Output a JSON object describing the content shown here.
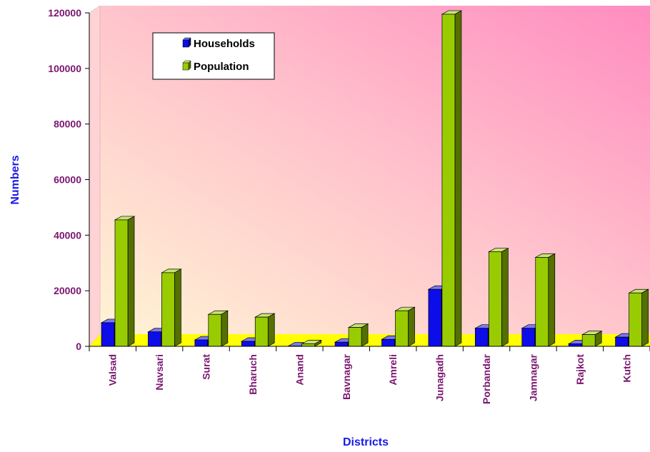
{
  "chart_data": {
    "type": "bar",
    "title": "",
    "xlabel": "Districts",
    "ylabel": "Numbers",
    "categories": [
      "Valsad",
      "Navsari",
      "Surat",
      "Bharuch",
      "Anand",
      "Bavnagar",
      "Amreli",
      "Junagadh",
      "Porbandar",
      "Jamnagar",
      "Rajkot",
      "Kutch"
    ],
    "series": [
      {
        "name": "Households",
        "values": [
          8500,
          5200,
          2300,
          1800,
          100,
          1500,
          2500,
          20500,
          6500,
          6500,
          900,
          3300
        ]
      },
      {
        "name": "Population",
        "values": [
          45500,
          26500,
          11500,
          10500,
          900,
          6800,
          12800,
          119500,
          34000,
          32000,
          4200,
          19200
        ]
      }
    ],
    "ylim": [
      0,
      120000
    ],
    "yticks": [
      "0",
      "20000",
      "40000",
      "60000",
      "80000",
      "100000",
      "120000"
    ],
    "legend_position": "top-left",
    "grid": false,
    "colors": {
      "households": "#0d0dea",
      "population": "#99cc00",
      "floor": "#ffff00",
      "tick_label": "#7a1670",
      "axis_title": "#1a1ae6"
    }
  }
}
